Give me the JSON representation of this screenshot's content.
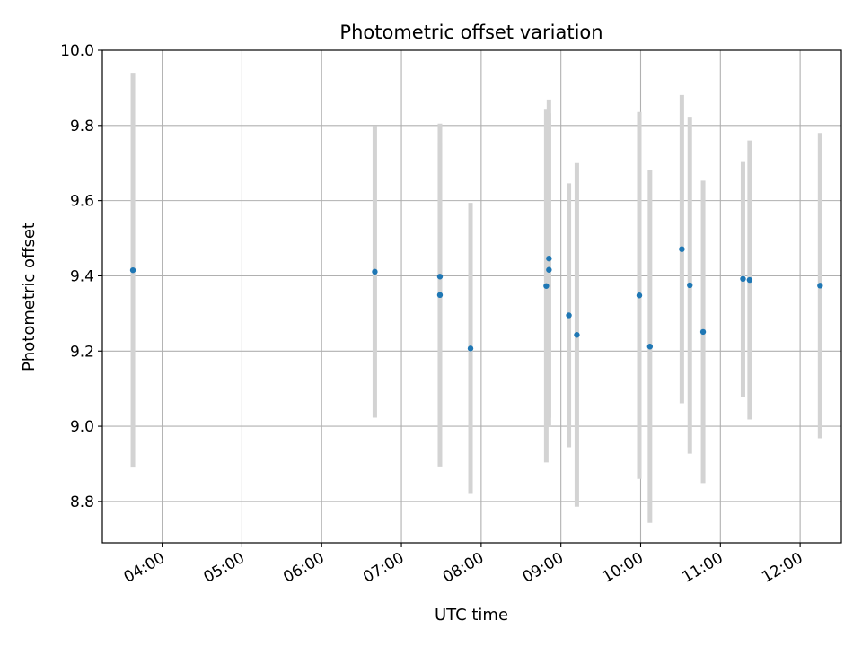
{
  "chart_data": {
    "type": "scatter",
    "title": "Photometric offset variation",
    "xlabel": "UTC time",
    "ylabel": "Photometric offset",
    "grid": true,
    "x_range": [
      "03:15",
      "12:31"
    ],
    "ylim": [
      8.69,
      10.0
    ],
    "x_ticks": [
      "04:00",
      "05:00",
      "06:00",
      "07:00",
      "08:00",
      "09:00",
      "10:00",
      "11:00",
      "12:00"
    ],
    "y_ticks": [
      "8.8",
      "9.0",
      "9.2",
      "9.4",
      "9.6",
      "9.8",
      "10.0"
    ],
    "point_color": "#1f77b4",
    "errorbar_color": "#d3d3d3",
    "points": [
      {
        "x": "03:38",
        "y": 9.415,
        "err": 0.525
      },
      {
        "x": "06:40",
        "y": 9.411,
        "err": 0.388
      },
      {
        "x": "07:29",
        "y": 9.398,
        "err": 0.356
      },
      {
        "x": "07:29",
        "y": 9.349,
        "err": 0.456
      },
      {
        "x": "07:52",
        "y": 9.207,
        "err": 0.387
      },
      {
        "x": "08:49",
        "y": 9.373,
        "err": 0.469
      },
      {
        "x": "08:51",
        "y": 9.446,
        "err": 0.423
      },
      {
        "x": "08:51",
        "y": 9.416,
        "err": 0.416
      },
      {
        "x": "09:06",
        "y": 9.295,
        "err": 0.351
      },
      {
        "x": "09:12",
        "y": 9.243,
        "err": 0.457
      },
      {
        "x": "09:59",
        "y": 9.348,
        "err": 0.488
      },
      {
        "x": "10:07",
        "y": 9.212,
        "err": 0.469
      },
      {
        "x": "10:31",
        "y": 9.471,
        "err": 0.41
      },
      {
        "x": "10:37",
        "y": 9.375,
        "err": 0.448
      },
      {
        "x": "10:47",
        "y": 9.251,
        "err": 0.402
      },
      {
        "x": "11:17",
        "y": 9.392,
        "err": 0.313
      },
      {
        "x": "11:22",
        "y": 9.389,
        "err": 0.371
      },
      {
        "x": "12:15",
        "y": 9.374,
        "err": 0.406
      }
    ]
  }
}
